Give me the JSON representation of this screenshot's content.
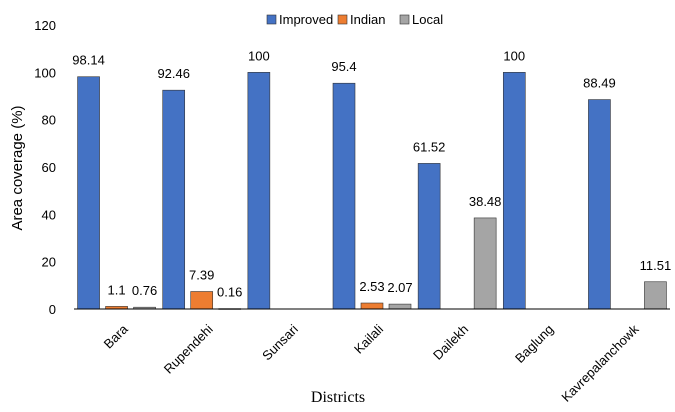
{
  "chart_data": {
    "type": "bar",
    "title": "",
    "xlabel": "Districts",
    "ylabel": "Area coverage (%)",
    "ylim": [
      0,
      120
    ],
    "yticks": [
      0,
      20,
      40,
      60,
      80,
      100,
      120
    ],
    "grid": false,
    "legend_position": "top-center",
    "categories": [
      "Bara",
      "Rupendehi",
      "Sunsari",
      "Kailali",
      "Dailekh",
      "Baglung",
      "Kavrepalanchowk"
    ],
    "series": [
      {
        "name": "Improved",
        "color": "#4472C4",
        "values": [
          98.14,
          92.46,
          100,
          95.4,
          61.52,
          100,
          88.49
        ],
        "labels": [
          "98.14",
          "92.46",
          "100",
          "95.4",
          "61.52",
          "100",
          "88.49"
        ]
      },
      {
        "name": "Indian",
        "color": "#ED7D31",
        "values": [
          1.1,
          7.39,
          null,
          2.53,
          null,
          null,
          null
        ],
        "labels": [
          "1.1",
          "7.39",
          null,
          "2.53",
          null,
          null,
          null
        ]
      },
      {
        "name": "Local",
        "color": "#A5A5A5",
        "values": [
          0.76,
          0.16,
          null,
          2.07,
          38.48,
          null,
          11.51
        ],
        "labels": [
          "0.76",
          "0.16",
          null,
          "2.07",
          "38.48",
          null,
          "11.51"
        ]
      }
    ]
  }
}
